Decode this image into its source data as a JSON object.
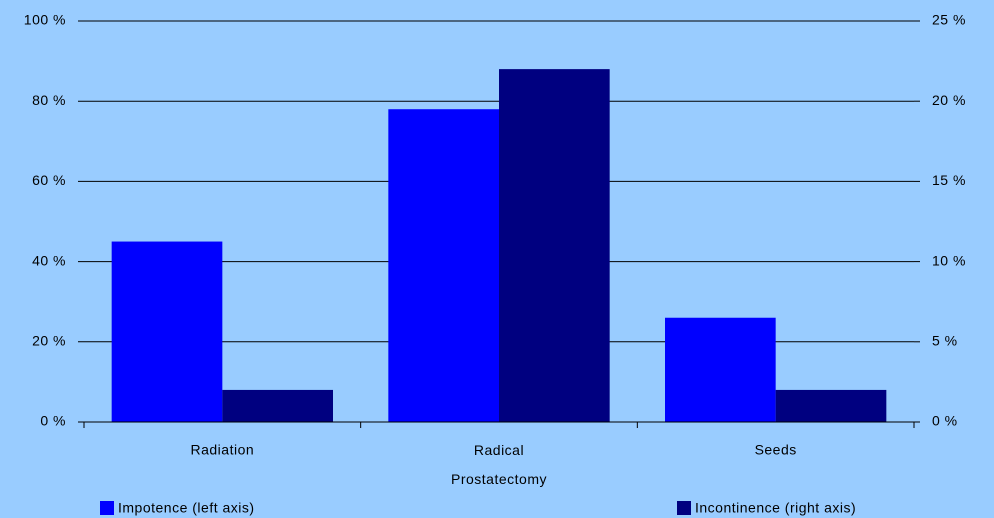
{
  "chart_data": {
    "type": "bar",
    "categories": [
      "Radiation",
      "Radical Prostatectomy",
      "Seeds"
    ],
    "series": [
      {
        "name": "Impotence (left axis)",
        "color": "#0000ff",
        "values": [
          45,
          78,
          26
        ]
      },
      {
        "name": "Incontinence (right axis)",
        "color": "#000080",
        "values": [
          2,
          22,
          2
        ],
        "axis": "y2"
      }
    ],
    "ylim": [
      0,
      100
    ],
    "yticks": [
      {
        "value": 0,
        "label": "0 %"
      },
      {
        "value": 20,
        "label": "20 %"
      },
      {
        "value": 40,
        "label": "40 %"
      },
      {
        "value": 60,
        "label": "60 %"
      },
      {
        "value": 80,
        "label": "80 %"
      },
      {
        "value": 100,
        "label": "100 %"
      }
    ],
    "y2lim": [
      0,
      25
    ],
    "y2ticks": [
      {
        "value": 0,
        "label": "0 %"
      },
      {
        "value": 5,
        "label": "5 %"
      },
      {
        "value": 10,
        "label": "10 %"
      },
      {
        "value": 15,
        "label": "15 %"
      },
      {
        "value": 20,
        "label": "20 %"
      },
      {
        "value": 25,
        "label": "25 %"
      }
    ],
    "grid": true,
    "background": "#99ccff"
  }
}
